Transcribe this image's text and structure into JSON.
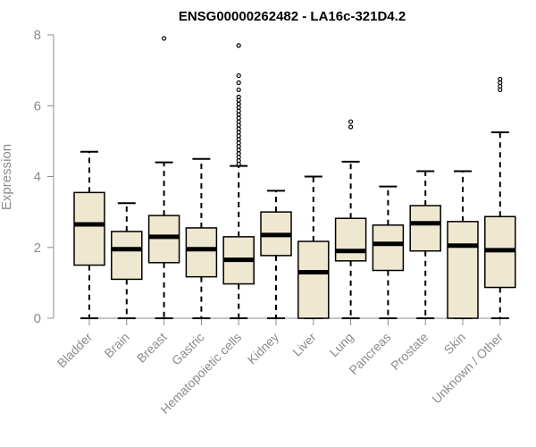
{
  "chart_data": {
    "type": "box",
    "title": "ENSG00000262482 - LA16c-321D4.2",
    "xlabel": "",
    "ylabel": "Expression",
    "ylim": [
      0,
      8
    ],
    "yticks": [
      "0",
      "2",
      "4",
      "6",
      "8"
    ],
    "grid": false,
    "colors": {
      "box_fill": "#efe8d0",
      "stroke": "#000000",
      "axis": "#8c8c8c",
      "text": "#8c8c8c"
    },
    "categories": [
      "Bladder",
      "Brain",
      "Breast",
      "Gastric",
      "Hematopoietic cells",
      "Kidney",
      "Liver",
      "Lung",
      "Pancreas",
      "Prostate",
      "Skin",
      "Unknown / Other"
    ],
    "boxes": [
      {
        "min": 0,
        "q1": 1.5,
        "median": 2.65,
        "q3": 3.55,
        "max": 4.7,
        "outliers": []
      },
      {
        "min": 0,
        "q1": 1.1,
        "median": 1.95,
        "q3": 2.45,
        "max": 3.25,
        "outliers": []
      },
      {
        "min": 0,
        "q1": 1.57,
        "median": 2.3,
        "q3": 2.9,
        "max": 4.4,
        "outliers": [
          7.9
        ]
      },
      {
        "min": 0,
        "q1": 1.17,
        "median": 1.95,
        "q3": 2.55,
        "max": 4.5,
        "outliers": []
      },
      {
        "min": 0,
        "q1": 0.97,
        "median": 1.65,
        "q3": 2.3,
        "max": 4.3,
        "outliers": [
          4.35,
          4.45,
          4.55,
          4.65,
          4.75,
          4.85,
          4.95,
          5.05,
          5.15,
          5.25,
          5.35,
          5.45,
          5.55,
          5.65,
          5.75,
          5.85,
          5.95,
          6.05,
          6.15,
          6.25,
          6.45,
          6.65,
          6.85,
          7.7
        ]
      },
      {
        "min": 0,
        "q1": 1.77,
        "median": 2.35,
        "q3": 3.0,
        "max": 3.6,
        "outliers": []
      },
      {
        "min": 0,
        "q1": 0,
        "median": 1.3,
        "q3": 2.17,
        "max": 4.0,
        "outliers": []
      },
      {
        "min": 0,
        "q1": 1.62,
        "median": 1.9,
        "q3": 2.82,
        "max": 4.42,
        "outliers": [
          5.4,
          5.55
        ]
      },
      {
        "min": 0,
        "q1": 1.35,
        "median": 2.1,
        "q3": 2.63,
        "max": 3.72,
        "outliers": []
      },
      {
        "min": 0,
        "q1": 1.9,
        "median": 2.68,
        "q3": 3.18,
        "max": 4.15,
        "outliers": []
      },
      {
        "min": 0,
        "q1": 0,
        "median": 2.05,
        "q3": 2.73,
        "max": 4.15,
        "outliers": []
      },
      {
        "min": 0,
        "q1": 0.87,
        "median": 1.92,
        "q3": 2.87,
        "max": 5.25,
        "outliers": [
          6.45,
          6.55,
          6.65,
          6.75
        ]
      }
    ]
  }
}
